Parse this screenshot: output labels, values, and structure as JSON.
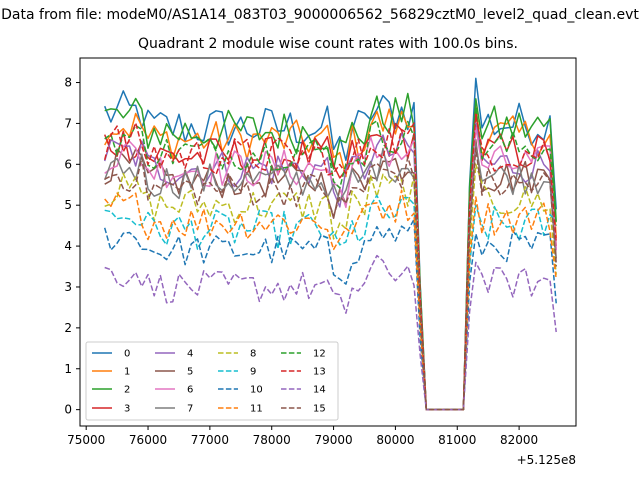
{
  "suptitle": "Data from file: modeM0/AS1A14_083T03_9000006562_56829cztM0_level2_quad_clean.evt",
  "chart_data": {
    "type": "line",
    "title": "Quadrant 2 module wise count rates with 100.0s bins.",
    "xlabel": "",
    "ylabel": "",
    "x_offset_label": "+5.125e8",
    "xlim": [
      74900,
      82920
    ],
    "ylim": [
      -0.4,
      8.6
    ],
    "xticks": [
      75000,
      76000,
      77000,
      78000,
      79000,
      80000,
      81000,
      82000
    ],
    "xtick_labels": [
      "75000",
      "76000",
      "77000",
      "78000",
      "79000",
      "80000",
      "81000",
      "82000"
    ],
    "yticks": [
      0,
      1,
      2,
      3,
      4,
      5,
      6,
      7,
      8
    ],
    "ytick_labels": [
      "0",
      "1",
      "2",
      "3",
      "4",
      "5",
      "6",
      "7",
      "8"
    ],
    "x_start": 75300,
    "x_step": 100,
    "gap": {
      "x_from": 80500,
      "x_to": 81100
    },
    "grid": false,
    "legend_placement": "lower-left",
    "legend_columns": 4,
    "series": [
      {
        "name": "0",
        "color": "#1f77b4",
        "dash": "solid",
        "level": 6.9,
        "noise": 0.25,
        "peak": 8.1,
        "end": 4.9
      },
      {
        "name": "1",
        "color": "#ff7f0e",
        "dash": "solid",
        "level": 6.6,
        "noise": 0.22,
        "peak": 7.4,
        "end": 4.2
      },
      {
        "name": "2",
        "color": "#2ca02c",
        "dash": "solid",
        "level": 6.8,
        "noise": 0.25,
        "peak": 7.6,
        "end": 4.6
      },
      {
        "name": "3",
        "color": "#d62728",
        "dash": "solid",
        "level": 6.2,
        "noise": 0.22,
        "peak": 7.3,
        "end": 4.0
      },
      {
        "name": "4",
        "color": "#9467bd",
        "dash": "solid",
        "level": 5.9,
        "noise": 0.22,
        "peak": 7.0,
        "end": 3.9
      },
      {
        "name": "5",
        "color": "#8c564b",
        "dash": "solid",
        "level": 5.6,
        "noise": 0.2,
        "peak": 6.6,
        "end": 3.7
      },
      {
        "name": "6",
        "color": "#e377c2",
        "dash": "solid",
        "level": 5.9,
        "noise": 0.22,
        "peak": 6.9,
        "end": 3.9
      },
      {
        "name": "7",
        "color": "#7f7f7f",
        "dash": "solid",
        "level": 5.6,
        "noise": 0.2,
        "peak": 6.5,
        "end": 3.6
      },
      {
        "name": "8",
        "color": "#bcbd22",
        "dash": "dashed",
        "level": 5.0,
        "noise": 0.2,
        "peak": 6.0,
        "end": 3.3
      },
      {
        "name": "9",
        "color": "#17becf",
        "dash": "dashed",
        "level": 4.4,
        "noise": 0.22,
        "peak": 5.0,
        "end": 4.6
      },
      {
        "name": "10",
        "color": "#1f77b4",
        "dash": "dashed",
        "level": 3.9,
        "noise": 0.18,
        "peak": 4.3,
        "end": 2.6
      },
      {
        "name": "11",
        "color": "#ff7f0e",
        "dash": "dashed",
        "level": 4.6,
        "noise": 0.2,
        "peak": 5.2,
        "end": 3.2
      },
      {
        "name": "12",
        "color": "#2ca02c",
        "dash": "dashed",
        "level": 6.3,
        "noise": 0.2,
        "peak": 7.4,
        "end": 4.5
      },
      {
        "name": "13",
        "color": "#d62728",
        "dash": "dashed",
        "level": 6.2,
        "noise": 0.22,
        "peak": 7.2,
        "end": 4.1
      },
      {
        "name": "14",
        "color": "#9467bd",
        "dash": "dashed",
        "level": 3.0,
        "noise": 0.18,
        "peak": 3.6,
        "end": 1.9
      },
      {
        "name": "15",
        "color": "#8c564b",
        "dash": "dashed",
        "level": 5.4,
        "noise": 0.2,
        "peak": 6.4,
        "end": 3.5
      }
    ]
  }
}
